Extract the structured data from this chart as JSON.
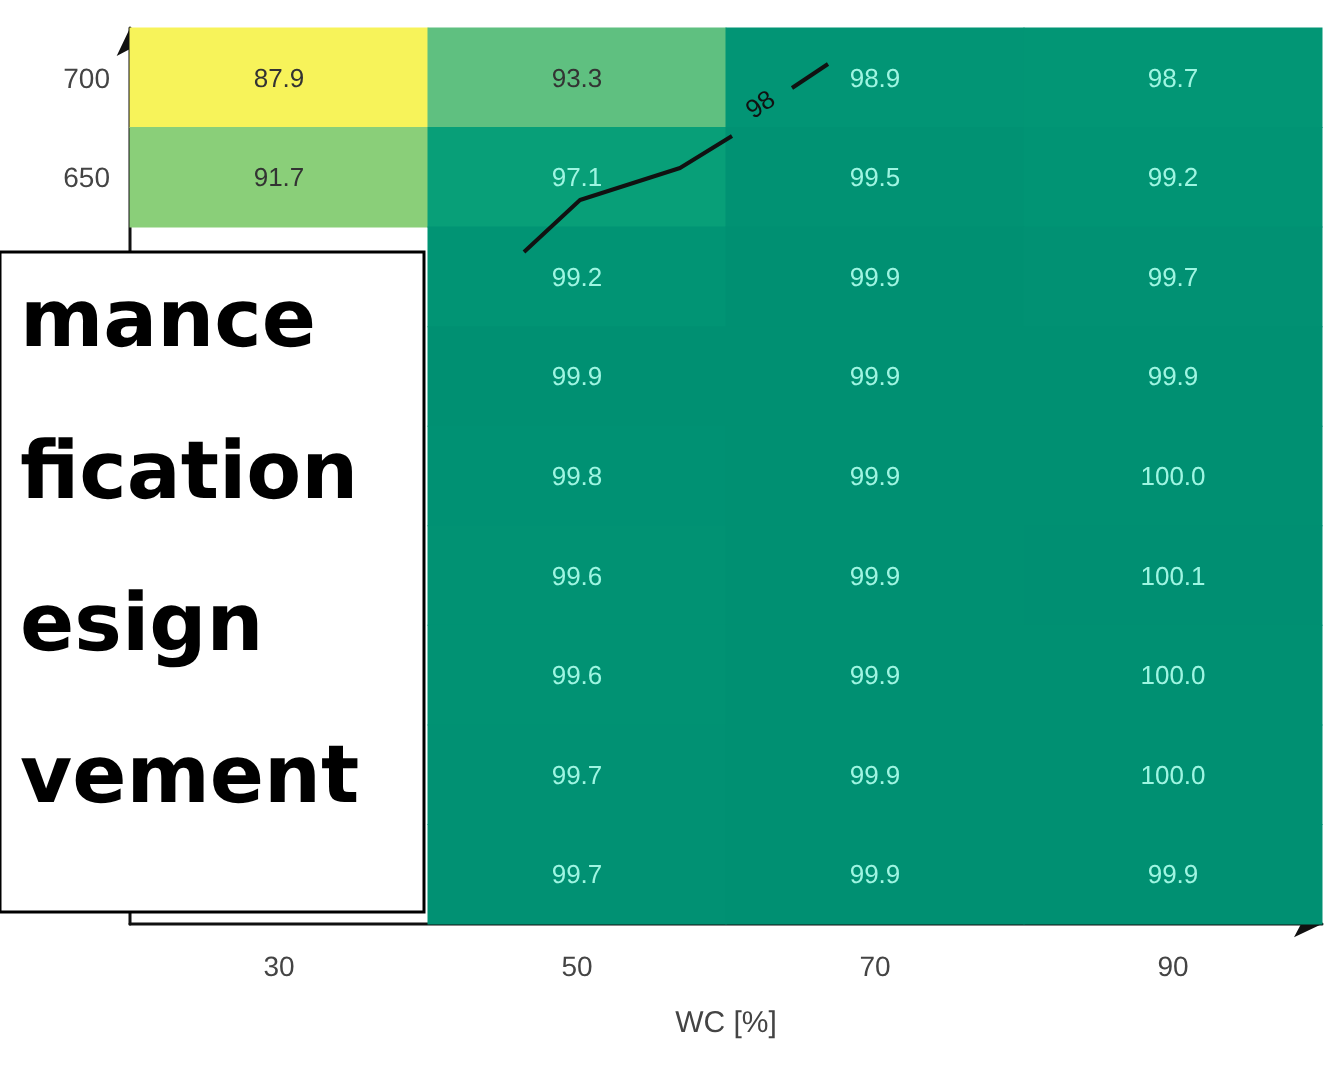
{
  "chart_data": {
    "type": "heatmap",
    "xlabel": "WC [%]",
    "categories": [
      "30",
      "50",
      "70",
      "90"
    ],
    "y_categories": [
      "700",
      "650",
      null,
      null,
      null,
      null,
      null,
      null,
      null
    ],
    "cells": [
      [
        87.9,
        93.3,
        98.9,
        98.7
      ],
      [
        91.7,
        97.1,
        99.5,
        99.2
      ],
      [
        null,
        99.2,
        99.9,
        99.7
      ],
      [
        null,
        99.9,
        99.9,
        99.9
      ],
      [
        null,
        99.8,
        99.9,
        100.0
      ],
      [
        null,
        99.6,
        99.9,
        100.1
      ],
      [
        null,
        99.6,
        99.9,
        100.0
      ],
      [
        null,
        99.7,
        99.9,
        100.0
      ],
      [
        null,
        99.7,
        99.9,
        99.9
      ]
    ],
    "cell_labels": [
      [
        "87.9",
        "93.3",
        "98.9",
        "98.7"
      ],
      [
        "91.7",
        "97.1",
        "99.5",
        "99.2"
      ],
      [
        null,
        "99.2",
        "99.9",
        "99.7"
      ],
      [
        null,
        "99.9",
        "99.9",
        "99.9"
      ],
      [
        null,
        "99.8",
        "99.9",
        "100.0"
      ],
      [
        null,
        "99.6",
        "99.9",
        "100.1"
      ],
      [
        null,
        "99.6",
        "99.9",
        "100.0"
      ],
      [
        null,
        "99.7",
        "99.9",
        "100.0"
      ],
      [
        null,
        "99.7",
        "99.9",
        "99.9"
      ]
    ],
    "data_labels": true,
    "annotations": [
      "98",
      "mance",
      "fication",
      "esign",
      "vement"
    ]
  }
}
